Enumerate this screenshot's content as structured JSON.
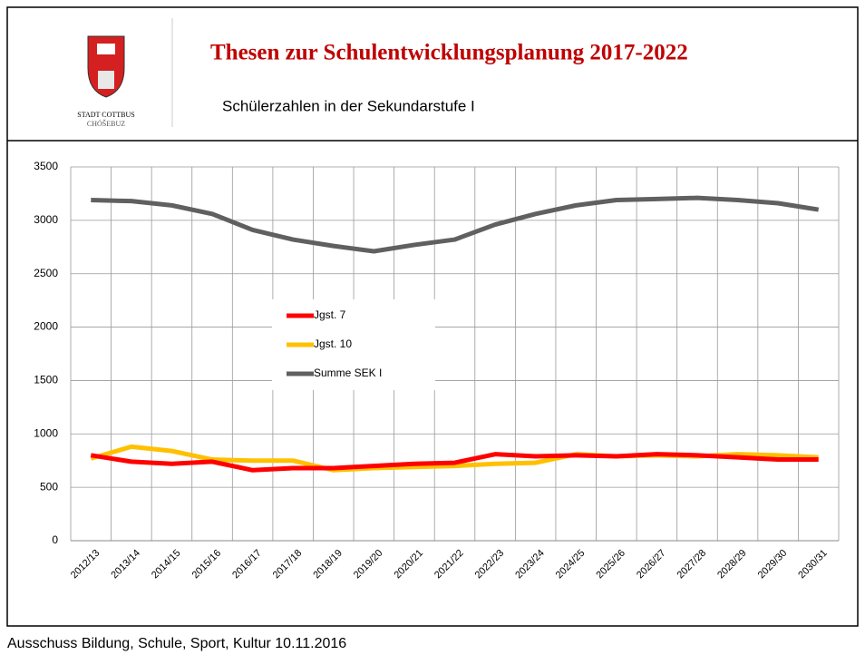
{
  "header": {
    "title": "Thesen zur Schulentwicklungsplanung 2017-2022",
    "subtitle": "Schülerzahlen in der Sekundarstufe I",
    "logo_line1": "STADT COTTBUS",
    "logo_line2": "CHÓŠEBUZ"
  },
  "footer": "Ausschuss Bildung, Schule, Sport, Kultur 10.11.2016",
  "chart_data": {
    "type": "line",
    "categories": [
      "2012/13",
      "2013/14",
      "2014/15",
      "2015/16",
      "2016/17",
      "2017/18",
      "2018/19",
      "2019/20",
      "2020/21",
      "2021/22",
      "2022/23",
      "2023/24",
      "2024/25",
      "2025/26",
      "2026/27",
      "2027/28",
      "2028/29",
      "2029/30",
      "2030/31"
    ],
    "series": [
      {
        "name": "Jgst. 7",
        "color": "#ff0000",
        "values": [
          800,
          740,
          720,
          740,
          660,
          680,
          680,
          700,
          720,
          730,
          810,
          790,
          800,
          790,
          810,
          800,
          780,
          760,
          760
        ]
      },
      {
        "name": "Jgst. 10",
        "color": "#ffc000",
        "values": [
          770,
          880,
          840,
          760,
          750,
          750,
          660,
          680,
          690,
          700,
          720,
          730,
          810,
          790,
          800,
          790,
          810,
          800,
          780
        ]
      },
      {
        "name": "Summe SEK I",
        "color": "#606060",
        "values": [
          3190,
          3180,
          3140,
          3060,
          2910,
          2820,
          2760,
          2710,
          2770,
          2820,
          2960,
          3060,
          3140,
          3190,
          3200,
          3210,
          3190,
          3160,
          3100
        ]
      }
    ],
    "ylim": [
      0,
      3500
    ],
    "yticks": [
      0,
      500,
      1000,
      1500,
      2000,
      2500,
      3000,
      3500
    ],
    "grid": true
  }
}
